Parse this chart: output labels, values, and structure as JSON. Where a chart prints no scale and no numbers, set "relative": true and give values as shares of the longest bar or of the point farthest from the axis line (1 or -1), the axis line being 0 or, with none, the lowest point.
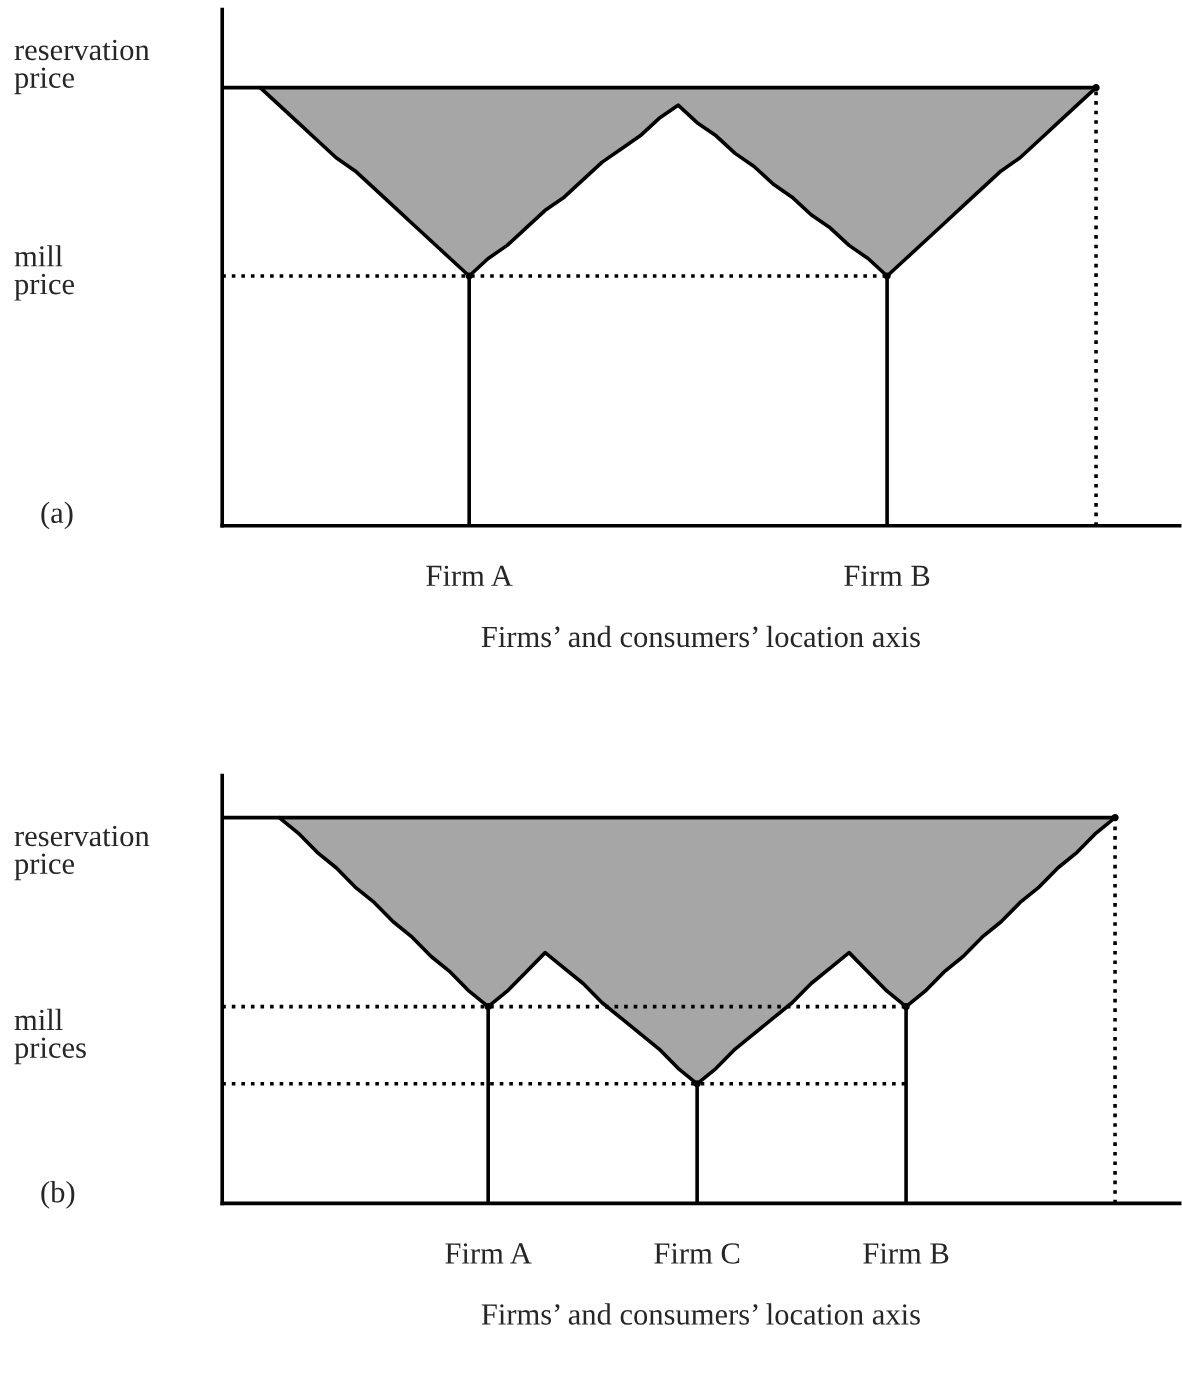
{
  "chart_data": [
    {
      "type": "line",
      "relative": true,
      "xlabel": "Firms’ and consumers’ location axis",
      "annotations": [
        "(a)",
        "reservation\nprice",
        "mill\nprice"
      ],
      "categories": [
        null,
        null,
        null,
        null,
        null,
        null,
        null,
        null,
        null,
        null,
        null,
        null,
        null,
        "Firm A",
        null,
        null,
        null,
        null,
        null,
        null,
        null,
        null,
        null,
        null,
        null,
        null,
        null,
        null,
        null,
        null,
        null,
        null,
        null,
        null,
        null,
        "Firm B",
        null,
        null,
        null,
        null,
        null,
        null,
        null,
        null,
        null,
        null,
        null,
        null,
        null,
        null,
        null
      ],
      "series": [
        {
          "color": "#000000",
          "lower": [
            null,
            null,
            1,
            0.96,
            0.92,
            0.88,
            0.84,
            0.81,
            0.77,
            0.73,
            0.69,
            0.65,
            0.61,
            0.57,
            0.61,
            0.64,
            0.68,
            0.72,
            0.75,
            0.79,
            0.83,
            0.86,
            0.89,
            0.93,
            0.96,
            0.92,
            0.89,
            0.85,
            0.82,
            0.78,
            0.75,
            0.71,
            0.68,
            0.64,
            0.61,
            0.57,
            0.61,
            0.65,
            0.69,
            0.73,
            0.77,
            0.81,
            0.84,
            0.88,
            0.92,
            0.96,
            1,
            null,
            null,
            null,
            null
          ],
          "values": [
            null,
            null,
            1,
            0.96,
            0.92,
            0.88,
            0.84,
            0.81,
            0.77,
            0.73,
            0.69,
            0.65,
            0.61,
            0.57,
            0.61,
            0.64,
            0.68,
            0.72,
            0.75,
            0.79,
            0.83,
            0.86,
            0.89,
            0.93,
            0.96,
            0.92,
            0.89,
            0.85,
            0.82,
            0.78,
            0.75,
            0.71,
            0.68,
            0.64,
            0.61,
            0.57,
            0.61,
            0.65,
            0.69,
            0.73,
            0.77,
            0.81,
            0.84,
            0.88,
            0.92,
            0.96,
            1,
            null,
            null,
            null,
            null
          ],
          "upper": [
            null,
            null,
            1,
            1,
            1,
            1,
            1,
            1,
            1,
            1,
            1,
            1,
            1,
            1,
            1,
            1,
            1,
            1,
            1,
            1,
            1,
            1,
            1,
            1,
            1,
            1,
            1,
            1,
            1,
            1,
            1,
            1,
            1,
            1,
            1,
            1,
            1,
            1,
            1,
            1,
            1,
            1,
            1,
            1,
            1,
            1,
            1,
            null,
            null,
            null,
            null
          ]
        },
        {
          "color": "#000000",
          "values": [
            1,
            1,
            1,
            1,
            1,
            1,
            1,
            1,
            1,
            1,
            1,
            1,
            1,
            1,
            1,
            1,
            1,
            1,
            1,
            1,
            1,
            1,
            1,
            1,
            1,
            1,
            1,
            1,
            1,
            1,
            1,
            1,
            1,
            1,
            1,
            1,
            1,
            1,
            1,
            1,
            1,
            1,
            1,
            1,
            1,
            1,
            1,
            null,
            null,
            null,
            null
          ]
        },
        {
          "color": "#000000",
          "line_style": "dotted",
          "values": [
            0.57,
            0.57,
            0.57,
            0.57,
            0.57,
            0.57,
            0.57,
            0.57,
            0.57,
            0.57,
            0.57,
            0.57,
            0.57,
            0.57,
            0.57,
            0.57,
            0.57,
            0.57,
            0.57,
            0.57,
            0.57,
            0.57,
            0.57,
            0.57,
            0.57,
            0.57,
            0.57,
            0.57,
            0.57,
            0.57,
            0.57,
            0.57,
            0.57,
            0.57,
            0.57,
            0.57,
            null,
            null,
            null,
            null,
            null,
            null,
            null,
            null,
            null,
            null,
            null,
            null,
            null,
            null,
            null
          ]
        },
        {
          "type": "lollipop",
          "color": "#000000",
          "values": [
            null,
            null,
            null,
            null,
            null,
            null,
            null,
            null,
            null,
            null,
            null,
            null,
            null,
            0.57,
            null,
            null,
            null,
            null,
            null,
            null,
            null,
            null,
            null,
            null,
            null,
            null,
            null,
            null,
            null,
            null,
            null,
            null,
            null,
            null,
            null,
            0.57,
            null,
            null,
            null,
            null,
            null,
            null,
            null,
            null,
            null,
            null,
            null,
            null,
            null,
            null,
            null
          ]
        },
        {
          "type": "lollipop",
          "color": "#000000",
          "line_style": "dotted",
          "values": [
            null,
            null,
            null,
            null,
            null,
            null,
            null,
            null,
            null,
            null,
            null,
            null,
            null,
            null,
            null,
            null,
            null,
            null,
            null,
            null,
            null,
            null,
            null,
            null,
            null,
            null,
            null,
            null,
            null,
            null,
            null,
            null,
            null,
            null,
            null,
            null,
            null,
            null,
            null,
            null,
            null,
            null,
            null,
            null,
            null,
            null,
            1,
            null,
            null,
            null,
            null
          ]
        }
      ]
    },
    {
      "type": "line",
      "relative": true,
      "xlabel": "Firms’ and consumers’ location axis",
      "annotations": [
        "(b)",
        "reservation\nprice",
        "mill\nprices"
      ],
      "categories": [
        null,
        null,
        null,
        null,
        null,
        null,
        null,
        null,
        null,
        null,
        null,
        null,
        null,
        null,
        "Firm A",
        null,
        null,
        null,
        null,
        null,
        null,
        null,
        null,
        null,
        null,
        "Firm C",
        null,
        null,
        null,
        null,
        null,
        null,
        null,
        null,
        null,
        null,
        "Firm B",
        null,
        null,
        null,
        null,
        null,
        null,
        null,
        null,
        null,
        null,
        null,
        null,
        null,
        null
      ],
      "series": [
        {
          "color": "#000000",
          "lower": [
            null,
            null,
            null,
            1,
            0.96,
            0.91,
            0.87,
            0.82,
            0.78,
            0.73,
            0.69,
            0.64,
            0.6,
            0.55,
            0.51,
            0.55,
            0.6,
            0.65,
            0.61,
            0.57,
            0.52,
            0.48,
            0.44,
            0.4,
            0.35,
            0.31,
            0.35,
            0.4,
            0.44,
            0.48,
            0.52,
            0.57,
            0.61,
            0.65,
            0.6,
            0.55,
            0.51,
            0.55,
            0.6,
            0.64,
            0.69,
            0.73,
            0.78,
            0.82,
            0.87,
            0.91,
            0.96,
            1,
            null,
            null,
            null
          ],
          "values": [
            null,
            null,
            null,
            1,
            0.96,
            0.91,
            0.87,
            0.82,
            0.78,
            0.73,
            0.69,
            0.64,
            0.6,
            0.55,
            0.51,
            0.55,
            0.6,
            0.65,
            0.61,
            0.57,
            0.52,
            0.48,
            0.44,
            0.4,
            0.35,
            0.31,
            0.35,
            0.4,
            0.44,
            0.48,
            0.52,
            0.57,
            0.61,
            0.65,
            0.6,
            0.55,
            0.51,
            0.55,
            0.6,
            0.64,
            0.69,
            0.73,
            0.78,
            0.82,
            0.87,
            0.91,
            0.96,
            1,
            null,
            null,
            null
          ],
          "upper": [
            null,
            null,
            null,
            1,
            1,
            1,
            1,
            1,
            1,
            1,
            1,
            1,
            1,
            1,
            1,
            1,
            1,
            1,
            1,
            1,
            1,
            1,
            1,
            1,
            1,
            1,
            1,
            1,
            1,
            1,
            1,
            1,
            1,
            1,
            1,
            1,
            1,
            1,
            1,
            1,
            1,
            1,
            1,
            1,
            1,
            1,
            1,
            1,
            null,
            null,
            null
          ]
        },
        {
          "color": "#000000",
          "values": [
            1,
            1,
            1,
            1,
            1,
            1,
            1,
            1,
            1,
            1,
            1,
            1,
            1,
            1,
            1,
            1,
            1,
            1,
            1,
            1,
            1,
            1,
            1,
            1,
            1,
            1,
            1,
            1,
            1,
            1,
            1,
            1,
            1,
            1,
            1,
            1,
            1,
            1,
            1,
            1,
            1,
            1,
            1,
            1,
            1,
            1,
            1,
            1,
            null,
            null,
            null
          ]
        },
        {
          "color": "#000000",
          "line_style": "dotted",
          "values": [
            0.51,
            0.51,
            0.51,
            0.51,
            0.51,
            0.51,
            0.51,
            0.51,
            0.51,
            0.51,
            0.51,
            0.51,
            0.51,
            0.51,
            0.51,
            0.51,
            0.51,
            0.51,
            0.51,
            0.51,
            0.51,
            0.51,
            0.51,
            0.51,
            0.51,
            0.51,
            0.51,
            0.51,
            0.51,
            0.51,
            0.51,
            0.51,
            0.51,
            0.51,
            0.51,
            0.51,
            0.51,
            null,
            null,
            null,
            null,
            null,
            null,
            null,
            null,
            null,
            null,
            null,
            null,
            null,
            null
          ]
        },
        {
          "color": "#000000",
          "line_style": "dotted",
          "values": [
            0.31,
            0.31,
            0.31,
            0.31,
            0.31,
            0.31,
            0.31,
            0.31,
            0.31,
            0.31,
            0.31,
            0.31,
            0.31,
            0.31,
            0.31,
            0.31,
            0.31,
            0.31,
            0.31,
            0.31,
            0.31,
            0.31,
            0.31,
            0.31,
            0.31,
            0.31,
            0.31,
            0.31,
            0.31,
            0.31,
            0.31,
            0.31,
            0.31,
            0.31,
            0.31,
            0.31,
            0.31,
            null,
            null,
            null,
            null,
            null,
            null,
            null,
            null,
            null,
            null,
            null,
            null,
            null,
            null
          ]
        },
        {
          "type": "lollipop",
          "color": "#000000",
          "values": [
            null,
            null,
            null,
            null,
            null,
            null,
            null,
            null,
            null,
            null,
            null,
            null,
            null,
            null,
            0.51,
            null,
            null,
            null,
            null,
            null,
            null,
            null,
            null,
            null,
            null,
            0.31,
            null,
            null,
            null,
            null,
            null,
            null,
            null,
            null,
            null,
            null,
            0.51,
            null,
            null,
            null,
            null,
            null,
            null,
            null,
            null,
            null,
            null,
            null,
            null,
            null,
            null
          ]
        },
        {
          "type": "lollipop",
          "color": "#000000",
          "line_style": "dotted",
          "values": [
            null,
            null,
            null,
            null,
            null,
            null,
            null,
            null,
            null,
            null,
            null,
            null,
            null,
            null,
            null,
            null,
            null,
            null,
            null,
            null,
            null,
            null,
            null,
            null,
            null,
            null,
            null,
            null,
            null,
            null,
            null,
            null,
            null,
            null,
            null,
            null,
            null,
            null,
            null,
            null,
            null,
            null,
            null,
            null,
            null,
            null,
            null,
            1,
            null,
            null,
            null
          ]
        }
      ]
    }
  ]
}
